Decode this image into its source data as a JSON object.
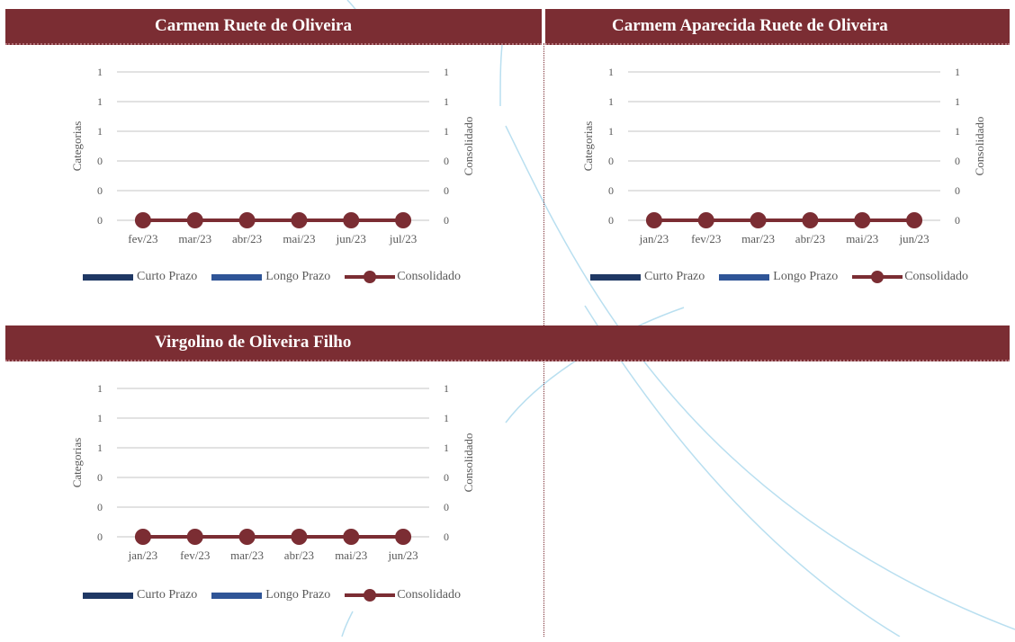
{
  "colors": {
    "banner": "#7b2d33",
    "curto": "#1f3864",
    "longo": "#2f5597",
    "consolidado": "#7b2d33",
    "grid": "#d9d9d9",
    "axis_text": "#595959"
  },
  "legend": {
    "curto": "Curto Prazo",
    "longo": "Longo Prazo",
    "consolidado": "Consolidado"
  },
  "chart_data": [
    {
      "type": "line",
      "title": "Carmem Ruete de Oliveira",
      "categories": [
        "fev/23",
        "mar/23",
        "abr/23",
        "mai/23",
        "jun/23",
        "jul/23"
      ],
      "ylabel": "Categorias",
      "y2label": "Consolidado",
      "y_ticks": [
        "1",
        "1",
        "1",
        "0",
        "0",
        "0"
      ],
      "y2_ticks": [
        "1",
        "1",
        "1",
        "0",
        "0",
        "0"
      ],
      "ylim": [
        0,
        1
      ],
      "series": [
        {
          "name": "Curto Prazo",
          "type": "bar",
          "values": [
            0,
            0,
            0,
            0,
            0,
            0
          ]
        },
        {
          "name": "Longo Prazo",
          "type": "bar",
          "values": [
            0,
            0,
            0,
            0,
            0,
            0
          ]
        },
        {
          "name": "Consolidado",
          "type": "line",
          "values": [
            0,
            0,
            0,
            0,
            0,
            0
          ]
        }
      ],
      "legend_position": "bottom"
    },
    {
      "type": "line",
      "title": "Carmem Aparecida Ruete de Oliveira",
      "categories": [
        "jan/23",
        "fev/23",
        "mar/23",
        "abr/23",
        "mai/23",
        "jun/23"
      ],
      "ylabel": "Categorias",
      "y2label": "Consolidado",
      "y_ticks": [
        "1",
        "1",
        "1",
        "0",
        "0",
        "0"
      ],
      "y2_ticks": [
        "1",
        "1",
        "1",
        "0",
        "0",
        "0"
      ],
      "ylim": [
        0,
        1
      ],
      "series": [
        {
          "name": "Curto Prazo",
          "type": "bar",
          "values": [
            0,
            0,
            0,
            0,
            0,
            0
          ]
        },
        {
          "name": "Longo Prazo",
          "type": "bar",
          "values": [
            0,
            0,
            0,
            0,
            0,
            0
          ]
        },
        {
          "name": "Consolidado",
          "type": "line",
          "values": [
            0,
            0,
            0,
            0,
            0,
            0
          ]
        }
      ],
      "legend_position": "bottom"
    },
    {
      "type": "line",
      "title": "Virgolino de Oliveira Filho",
      "categories": [
        "jan/23",
        "fev/23",
        "mar/23",
        "abr/23",
        "mai/23",
        "jun/23"
      ],
      "ylabel": "Categorias",
      "y2label": "Consolidado",
      "y_ticks": [
        "1",
        "1",
        "1",
        "0",
        "0",
        "0"
      ],
      "y2_ticks": [
        "1",
        "1",
        "1",
        "0",
        "0",
        "0"
      ],
      "ylim": [
        0,
        1
      ],
      "series": [
        {
          "name": "Curto Prazo",
          "type": "bar",
          "values": [
            0,
            0,
            0,
            0,
            0,
            0
          ]
        },
        {
          "name": "Longo Prazo",
          "type": "bar",
          "values": [
            0,
            0,
            0,
            0,
            0,
            0
          ]
        },
        {
          "name": "Consolidado",
          "type": "line",
          "values": [
            0,
            0,
            0,
            0,
            0,
            0
          ]
        }
      ],
      "legend_position": "bottom"
    }
  ]
}
